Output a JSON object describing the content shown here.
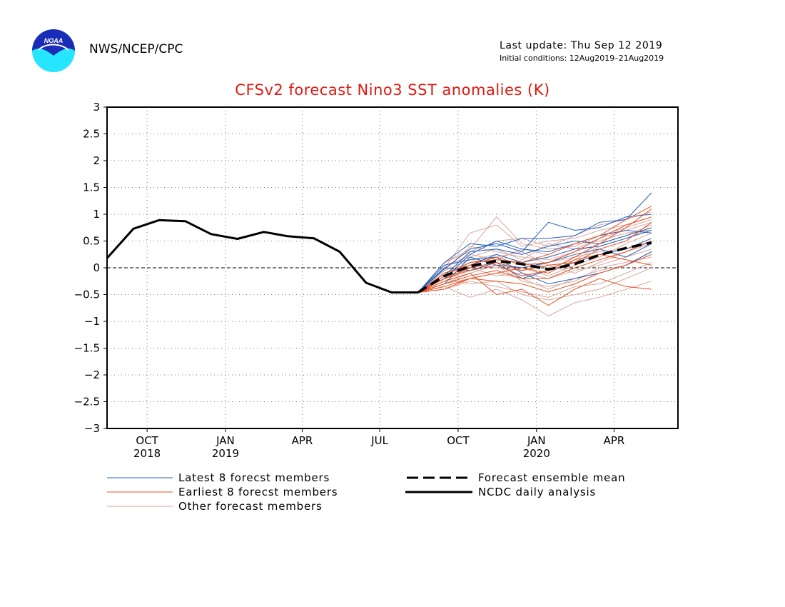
{
  "header": {
    "agency": "NWS/NCEP/CPC",
    "last_update": "Last update: Thu Sep 12 2019",
    "initial_conditions": "Initial conditions: 12Aug2019–21Aug2019",
    "logo_text": "NOAA"
  },
  "legend": {
    "latest": "Latest 8 forecst members",
    "earliest": "Earliest 8 forecst members",
    "other": "Other forecast members",
    "mean": "Forecast ensemble mean",
    "ncdc": "NCDC daily analysis"
  },
  "colors": {
    "latest": "#2060c0",
    "earliest": "#e8501e",
    "other": "#d8a8a0",
    "title": "#dd1a10"
  },
  "chart_data": {
    "type": "line",
    "title": "CFSv2 forecast Nino3 SST anomalies (K)",
    "ylim": [
      -3,
      3
    ],
    "yticks": [
      -3,
      -2.5,
      -2,
      -1.5,
      -1,
      -0.5,
      0,
      0.5,
      1,
      1.5,
      2,
      2.5,
      3
    ],
    "xlim": [
      "2018-08-15",
      "2020-06-15"
    ],
    "xticks": [
      {
        "date": "2018-10-01",
        "label": "OCT",
        "year": "2018"
      },
      {
        "date": "2019-01-01",
        "label": "JAN",
        "year": "2019"
      },
      {
        "date": "2019-04-01",
        "label": "APR",
        "year": ""
      },
      {
        "date": "2019-07-01",
        "label": "JUL",
        "year": ""
      },
      {
        "date": "2019-10-01",
        "label": "OCT",
        "year": ""
      },
      {
        "date": "2020-01-01",
        "label": "JAN",
        "year": "2020"
      },
      {
        "date": "2020-04-01",
        "label": "APR",
        "year": ""
      }
    ],
    "grid": true,
    "zero_line": true,
    "legend_position": "bottom",
    "observed": {
      "name": "NCDC daily analysis",
      "x": [
        "2018-08-15",
        "2018-09-15",
        "2018-10-15",
        "2018-11-15",
        "2018-12-15",
        "2019-01-15",
        "2019-02-15",
        "2019-03-15",
        "2019-04-15",
        "2019-05-15",
        "2019-06-15",
        "2019-07-15",
        "2019-08-15"
      ],
      "y": [
        0.18,
        0.73,
        0.89,
        0.87,
        0.63,
        0.54,
        0.67,
        0.59,
        0.55,
        0.3,
        -0.28,
        -0.46,
        -0.46
      ]
    },
    "ensemble_mean": {
      "name": "Forecast ensemble mean",
      "x": [
        "2019-08-15",
        "2019-09-15",
        "2019-10-15",
        "2019-11-15",
        "2019-12-15",
        "2020-01-15",
        "2020-02-15",
        "2020-03-15",
        "2020-04-15",
        "2020-05-15"
      ],
      "y": [
        -0.46,
        -0.15,
        0.03,
        0.13,
        0.07,
        -0.03,
        0.07,
        0.24,
        0.37,
        0.47
      ]
    },
    "members": {
      "x": [
        "2019-08-15",
        "2019-09-15",
        "2019-10-15",
        "2019-11-15",
        "2019-12-15",
        "2020-01-15",
        "2020-02-15",
        "2020-03-15",
        "2020-04-15",
        "2020-05-15"
      ],
      "latest": [
        [
          -0.46,
          -0.02,
          0.35,
          0.45,
          0.3,
          0.85,
          0.7,
          0.75,
          0.95,
          1.0
        ],
        [
          -0.46,
          0.1,
          0.45,
          0.4,
          0.55,
          0.55,
          0.6,
          0.85,
          0.9,
          1.4
        ],
        [
          -0.46,
          -0.2,
          0.25,
          0.5,
          0.35,
          0.3,
          0.45,
          0.6,
          0.7,
          0.65
        ],
        [
          -0.46,
          -0.1,
          0.05,
          0.25,
          0.1,
          0.2,
          0.35,
          0.4,
          0.55,
          0.7
        ],
        [
          -0.46,
          0.05,
          0.15,
          0.2,
          -0.1,
          -0.3,
          -0.2,
          -0.1,
          0.05,
          0.3
        ],
        [
          -0.46,
          -0.3,
          0.2,
          0.05,
          0.0,
          0.1,
          0.25,
          0.35,
          0.2,
          0.45
        ],
        [
          -0.46,
          0.0,
          -0.05,
          0.1,
          -0.2,
          -0.05,
          0.1,
          0.25,
          0.35,
          0.55
        ],
        [
          -0.46,
          -0.15,
          0.3,
          0.35,
          0.25,
          0.4,
          0.5,
          0.45,
          0.6,
          0.75
        ]
      ],
      "earliest": [
        [
          -0.46,
          -0.2,
          -0.05,
          0.05,
          -0.15,
          -0.05,
          0.2,
          0.45,
          0.75,
          1.1
        ],
        [
          -0.46,
          -0.35,
          -0.2,
          -0.25,
          -0.3,
          -0.45,
          -0.3,
          -0.1,
          0.05,
          0.25
        ],
        [
          -0.46,
          -0.25,
          -0.1,
          -0.5,
          -0.4,
          -0.7,
          -0.4,
          -0.2,
          -0.35,
          -0.4
        ],
        [
          -0.46,
          -0.1,
          0.05,
          0.2,
          0.05,
          0.1,
          0.3,
          0.55,
          0.8,
          0.95
        ],
        [
          -0.46,
          -0.3,
          -0.15,
          -0.05,
          -0.2,
          -0.2,
          0.0,
          0.15,
          0.3,
          0.5
        ],
        [
          -0.46,
          -0.15,
          0.1,
          0.15,
          0.1,
          0.25,
          0.45,
          0.6,
          0.9,
          1.15
        ],
        [
          -0.46,
          -0.4,
          -0.2,
          -0.1,
          0.0,
          -0.1,
          0.15,
          0.25,
          0.15,
          0.05
        ],
        [
          -0.46,
          -0.2,
          0.0,
          0.1,
          -0.05,
          0.05,
          0.1,
          0.35,
          0.5,
          0.85
        ]
      ],
      "other": [
        [
          -0.46,
          0.0,
          0.65,
          0.8,
          0.4,
          0.5,
          0.55,
          0.7,
          0.8,
          0.95
        ],
        [
          -0.46,
          0.1,
          0.35,
          0.95,
          0.45,
          0.35,
          0.4,
          0.6,
          0.75,
          0.9
        ],
        [
          -0.46,
          -0.35,
          -0.55,
          -0.4,
          -0.6,
          -0.9,
          -0.65,
          -0.55,
          -0.4,
          -0.25
        ],
        [
          -0.46,
          -0.2,
          -0.3,
          -0.25,
          -0.5,
          -0.6,
          -0.5,
          -0.4,
          -0.2,
          0.0
        ],
        [
          -0.46,
          -0.1,
          0.1,
          0.2,
          0.3,
          0.05,
          -0.1,
          0.1,
          0.3,
          0.45
        ],
        [
          -0.46,
          -0.25,
          0.0,
          -0.15,
          -0.1,
          -0.2,
          -0.05,
          0.05,
          0.2,
          0.35
        ],
        [
          -0.46,
          0.05,
          0.2,
          0.35,
          0.15,
          0.45,
          0.35,
          0.55,
          0.7,
          0.85
        ],
        [
          -0.46,
          -0.3,
          -0.1,
          0.05,
          -0.25,
          -0.35,
          -0.25,
          0.0,
          0.1,
          0.2
        ],
        [
          -0.46,
          -0.05,
          0.4,
          0.3,
          0.2,
          0.15,
          0.3,
          0.45,
          0.6,
          0.8
        ],
        [
          -0.46,
          -0.15,
          -0.05,
          0.1,
          0.0,
          -0.15,
          0.05,
          0.2,
          0.45,
          0.65
        ],
        [
          -0.46,
          -0.4,
          -0.25,
          -0.35,
          -0.45,
          -0.55,
          -0.35,
          -0.3,
          -0.1,
          0.1
        ],
        [
          -0.46,
          0.1,
          0.3,
          0.5,
          0.55,
          0.4,
          0.6,
          0.8,
          0.9,
          1.05
        ],
        [
          -0.46,
          -0.2,
          0.05,
          0.0,
          -0.05,
          0.1,
          0.2,
          0.3,
          0.35,
          0.5
        ],
        [
          -0.46,
          -0.05,
          0.15,
          0.25,
          0.1,
          0.0,
          0.15,
          0.4,
          0.55,
          0.75
        ],
        [
          -0.46,
          -0.3,
          -0.2,
          -0.1,
          -0.2,
          -0.4,
          -0.2,
          -0.05,
          0.05,
          0.3
        ],
        [
          -0.46,
          0.0,
          0.25,
          0.15,
          0.35,
          0.25,
          0.45,
          0.5,
          0.65,
          0.7
        ]
      ]
    }
  }
}
